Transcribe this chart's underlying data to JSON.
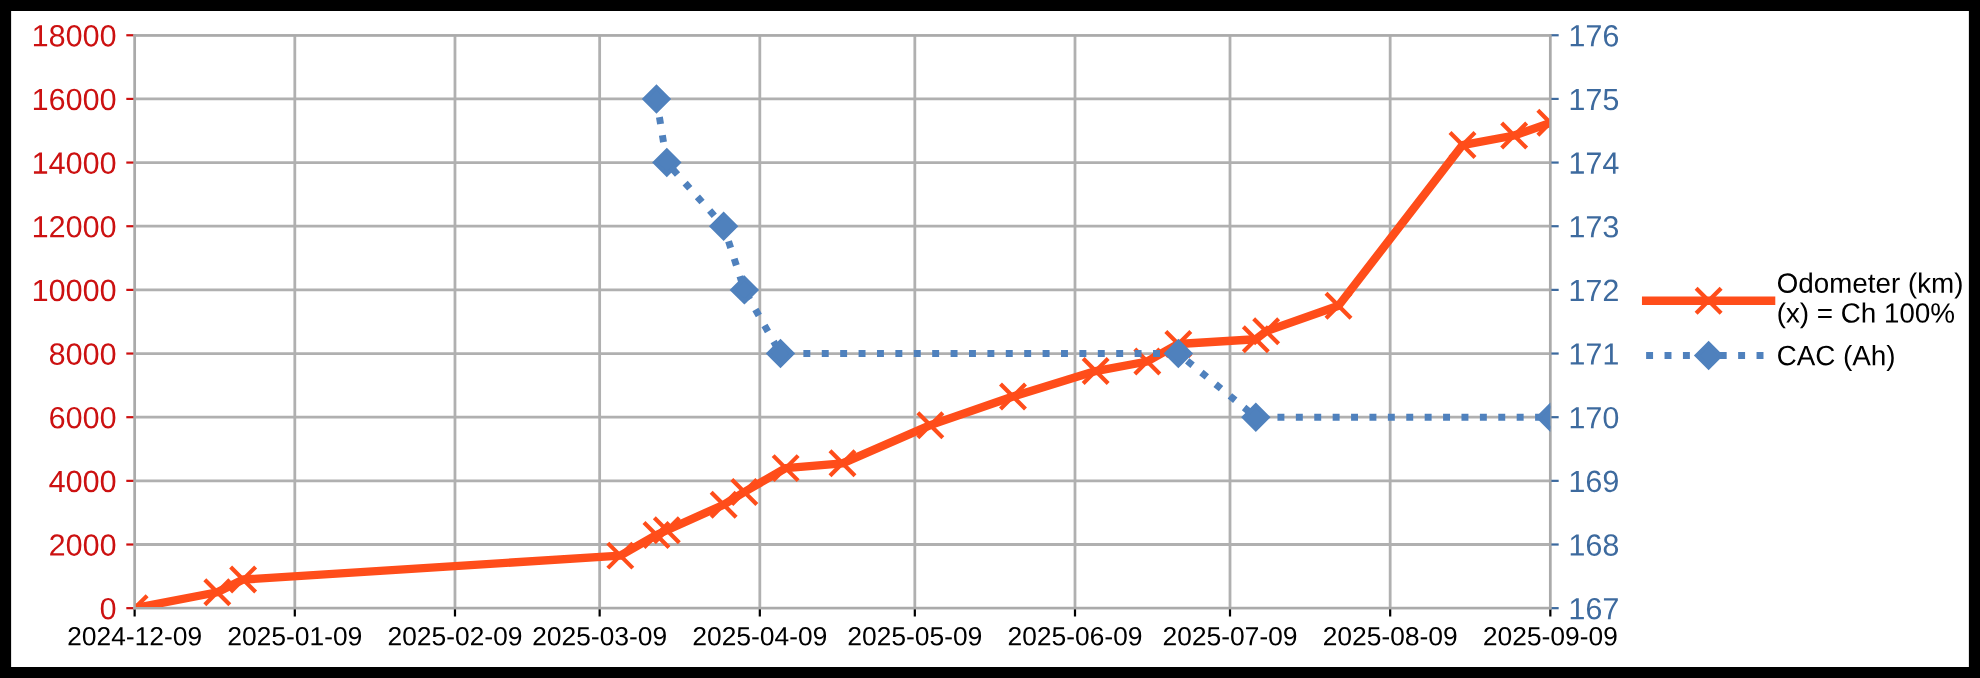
{
  "chart_data": {
    "type": "line",
    "xlim": [
      "2024-12-09",
      "2025-09-09"
    ],
    "xticks": [
      "2024-12-09",
      "2025-01-09",
      "2025-02-09",
      "2025-03-09",
      "2025-04-09",
      "2025-05-09",
      "2025-06-09",
      "2025-07-09",
      "2025-08-09",
      "2025-09-09"
    ],
    "ylim": [
      0,
      18000
    ],
    "yticks": [
      0,
      2000,
      4000,
      6000,
      8000,
      10000,
      12000,
      14000,
      16000,
      18000
    ],
    "y2lim": [
      167,
      176
    ],
    "y2ticks": [
      167,
      168,
      169,
      170,
      171,
      172,
      173,
      174,
      175,
      176
    ],
    "grid": true,
    "legend": "right",
    "series": [
      {
        "name": "Odometer (km)\n(x) = Ch 100%",
        "color": "#ff4d1a",
        "marker": "cross",
        "line_style": "solid",
        "x": [
          "2024-12-09",
          "2024-12-25",
          "2024-12-30",
          "2025-03-13",
          "2025-03-20",
          "2025-03-22",
          "2025-04-02",
          "2025-04-06",
          "2025-04-14",
          "2025-04-25",
          "2025-05-12",
          "2025-05-28",
          "2025-06-13",
          "2025-06-23",
          "2025-06-29",
          "2025-07-14",
          "2025-07-16",
          "2025-07-30",
          "2025-08-23",
          "2025-09-02",
          "2025-09-09"
        ],
        "values": [
          0,
          500,
          900,
          1650,
          2300,
          2450,
          3250,
          3650,
          4400,
          4550,
          5750,
          6650,
          7450,
          7750,
          8300,
          8450,
          8700,
          9500,
          14550,
          14850,
          15250
        ]
      },
      {
        "name": "CAC (Ah)",
        "color": "#4f81bd",
        "marker": "diamond",
        "line_style": "dotted",
        "axis": "y2",
        "x": [
          "2025-03-20",
          "2025-03-22",
          "2025-04-02",
          "2025-04-06",
          "2025-04-13",
          "2025-06-29",
          "2025-07-14",
          "2025-09-09"
        ],
        "values": [
          175,
          174,
          173,
          172,
          171,
          171,
          170,
          170
        ]
      }
    ]
  }
}
